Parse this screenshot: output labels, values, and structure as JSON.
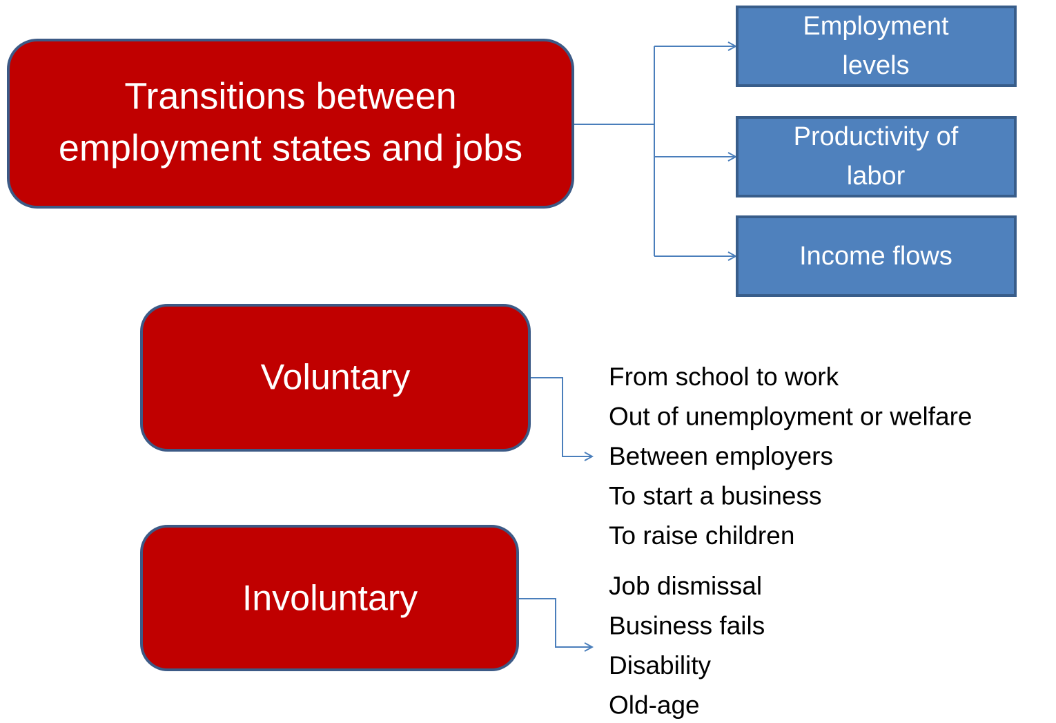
{
  "main": {
    "lines": [
      "Transitions between",
      "employment states and jobs"
    ]
  },
  "outcomes": [
    {
      "lines": [
        "Employment",
        "levels"
      ]
    },
    {
      "lines": [
        "Productivity of",
        "labor"
      ]
    },
    {
      "lines": [
        "Income flows"
      ]
    }
  ],
  "voluntary": {
    "label": "Voluntary",
    "items": [
      "From school to work",
      "Out of unemployment or welfare",
      "Between employers",
      "To start a business",
      "To raise children"
    ]
  },
  "involuntary": {
    "label": "Involuntary",
    "items": [
      "Job dismissal",
      "Business fails",
      "Disability",
      "Old-age"
    ]
  }
}
